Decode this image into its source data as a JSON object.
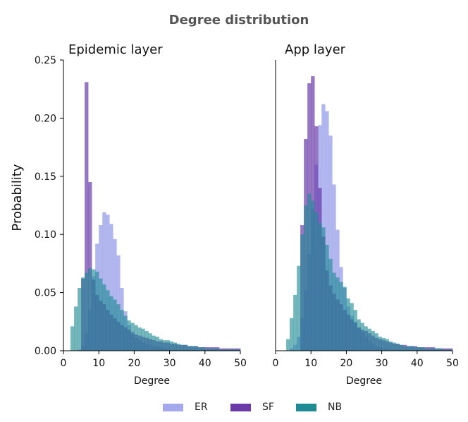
{
  "chart_data": {
    "title": "Degree distribution",
    "ylabel": "Probability",
    "colors": {
      "ER": "#a3a9ec",
      "SF": "#6a3aa8",
      "NB": "#1d8a94",
      "title": "#555555"
    },
    "legend": {
      "placement": "bottom-center",
      "entries": [
        "ER",
        "SF",
        "NB"
      ]
    },
    "panels": [
      {
        "type": "bar",
        "title": "Epidemic layer",
        "xlabel": "Degree",
        "xlim": [
          0,
          50
        ],
        "ylim": [
          0,
          0.25
        ],
        "xticks": [
          "0",
          "10",
          "20",
          "30",
          "40",
          "50"
        ],
        "yticks": [
          "0.00",
          "0.05",
          "0.10",
          "0.15",
          "0.20",
          "0.25"
        ],
        "series": [
          {
            "name": "ER",
            "bins_start": 4,
            "values": [
              0.001,
              0.004,
              0.015,
              0.035,
              0.064,
              0.092,
              0.108,
              0.119,
              0.117,
              0.109,
              0.096,
              0.082,
              0.054,
              0.034,
              0.022,
              0.014,
              0.011,
              0.009,
              0.007,
              0.006,
              0.005,
              0.004,
              0.003,
              0.003,
              0.002,
              0.002,
              0.001,
              0.001,
              0.001,
              0.001,
              0.001,
              0.001,
              0.001,
              0.001,
              0.001,
              0.001,
              0.001,
              0.001,
              0.001,
              0.001,
              0.001,
              0.001,
              0.001,
              0.001,
              0.001,
              0.001
            ]
          },
          {
            "name": "SF",
            "bins_start": 5,
            "values": [
              0.062,
              0.231,
              0.145,
              0.061,
              0.048,
              0.043,
              0.04,
              0.035,
              0.031,
              0.028,
              0.025,
              0.022,
              0.02,
              0.018,
              0.016,
              0.014,
              0.013,
              0.012,
              0.011,
              0.01,
              0.009,
              0.008,
              0.008,
              0.007,
              0.007,
              0.006,
              0.006,
              0.005,
              0.005,
              0.005,
              0.004,
              0.004,
              0.004,
              0.003,
              0.003,
              0.003,
              0.003,
              0.003,
              0.003,
              0.002,
              0.002,
              0.002,
              0.002,
              0.002,
              0.002
            ]
          },
          {
            "name": "NB",
            "bins_start": 2,
            "values": [
              0.021,
              0.038,
              0.054,
              0.063,
              0.067,
              0.071,
              0.07,
              0.068,
              0.062,
              0.057,
              0.052,
              0.047,
              0.044,
              0.04,
              0.035,
              0.03,
              0.026,
              0.024,
              0.022,
              0.02,
              0.019,
              0.017,
              0.015,
              0.013,
              0.012,
              0.01,
              0.009,
              0.009,
              0.008,
              0.007,
              0.006,
              0.005,
              0.005,
              0.004,
              0.004,
              0.004,
              0.003,
              0.003,
              0.002,
              0.002,
              0.002,
              0.002,
              0.001,
              0.001,
              0.001,
              0.001,
              0.001,
              0.001
            ]
          }
        ]
      },
      {
        "type": "bar",
        "title": "App layer",
        "xlabel": "Degree",
        "xlim": [
          0,
          50
        ],
        "ylim": [
          0,
          0.25
        ],
        "xticks": [
          "0",
          "10",
          "20",
          "30",
          "40",
          "50"
        ],
        "yticks": [],
        "series": [
          {
            "name": "ER",
            "bins_start": 4,
            "values": [
              0.002,
              0.005,
              0.012,
              0.028,
              0.052,
              0.083,
              0.122,
              0.16,
              0.194,
              0.212,
              0.206,
              0.185,
              0.143,
              0.104,
              0.072,
              0.054,
              0.038,
              0.03,
              0.025,
              0.02,
              0.016,
              0.012,
              0.009,
              0.006,
              0.004,
              0.003,
              0.002,
              0.002,
              0.001,
              0.001,
              0.001,
              0.001,
              0.001,
              0.001,
              0.001,
              0.001,
              0.001,
              0.001,
              0.001,
              0.001,
              0.001,
              0.001,
              0.001,
              0.001,
              0.001,
              0.001
            ]
          },
          {
            "name": "SF",
            "bins_start": 7,
            "values": [
              0.108,
              0.182,
              0.23,
              0.236,
              0.193,
              0.14,
              0.098,
              0.069,
              0.056,
              0.049,
              0.044,
              0.04,
              0.035,
              0.031,
              0.027,
              0.024,
              0.02,
              0.018,
              0.017,
              0.015,
              0.013,
              0.011,
              0.01,
              0.009,
              0.008,
              0.007,
              0.006,
              0.006,
              0.005,
              0.005,
              0.004,
              0.004,
              0.004,
              0.003,
              0.003,
              0.003,
              0.003,
              0.003,
              0.002,
              0.002,
              0.002,
              0.002,
              0.002
            ]
          },
          {
            "name": "NB",
            "bins_start": 3,
            "values": [
              0.01,
              0.028,
              0.048,
              0.073,
              0.1,
              0.125,
              0.135,
              0.129,
              0.119,
              0.11,
              0.106,
              0.091,
              0.079,
              0.067,
              0.063,
              0.059,
              0.055,
              0.045,
              0.041,
              0.035,
              0.027,
              0.024,
              0.021,
              0.019,
              0.017,
              0.015,
              0.012,
              0.011,
              0.01,
              0.008,
              0.007,
              0.006,
              0.005,
              0.004,
              0.004,
              0.004,
              0.003,
              0.003,
              0.003,
              0.002,
              0.002,
              0.002,
              0.002,
              0.002,
              0.001,
              0.001,
              0.001
            ]
          }
        ]
      }
    ]
  }
}
